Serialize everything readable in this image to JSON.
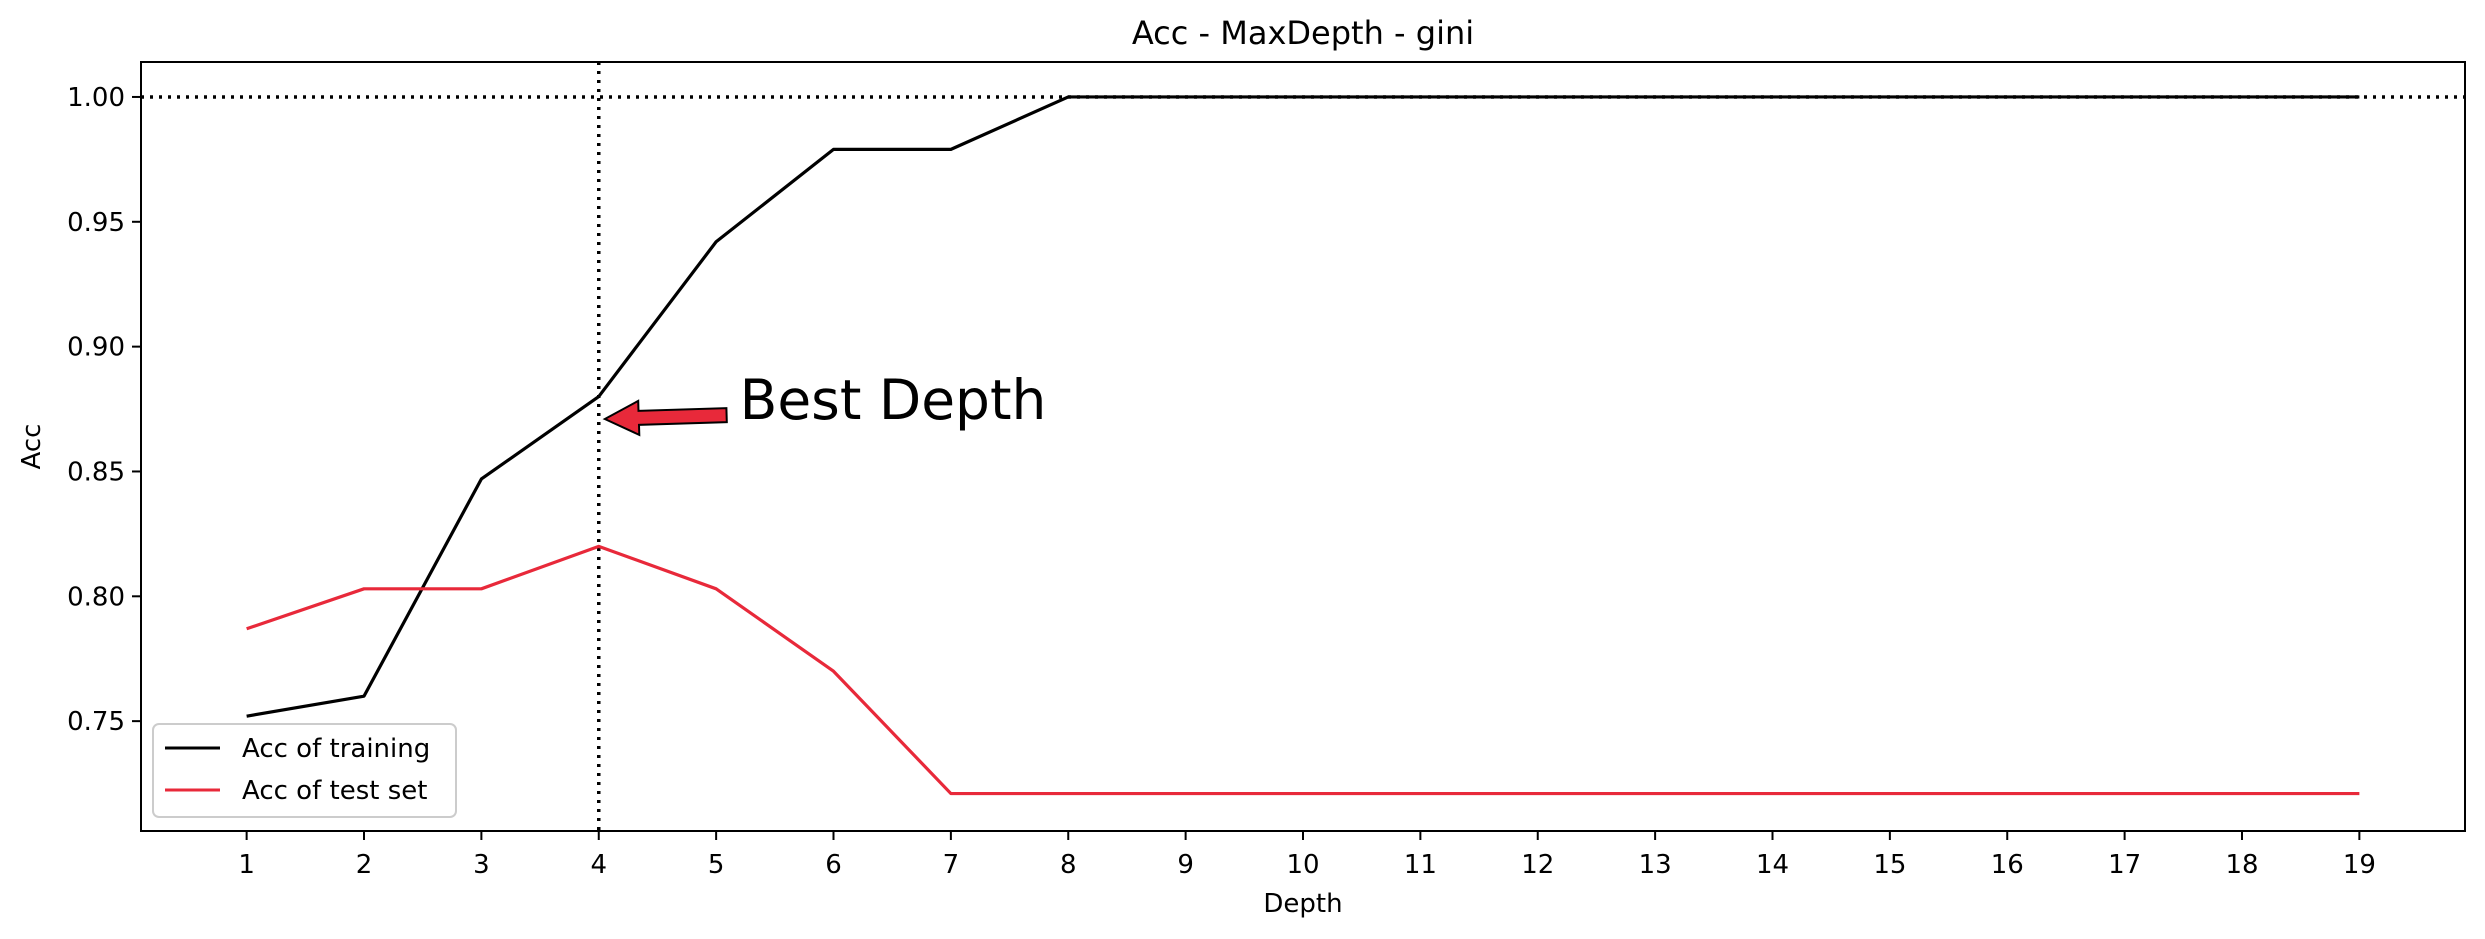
{
  "chart_data": {
    "type": "line",
    "title": "Acc - MaxDepth - gini",
    "xlabel": "Depth",
    "ylabel": "Acc",
    "x": [
      1,
      2,
      3,
      4,
      5,
      6,
      7,
      8,
      9,
      10,
      11,
      12,
      13,
      14,
      15,
      16,
      17,
      18,
      19
    ],
    "xlim": [
      0.1,
      19.9
    ],
    "ylim": [
      0.706,
      1.014
    ],
    "yticks": [
      "0.75",
      "0.80",
      "0.85",
      "0.90",
      "0.95",
      "1.00"
    ],
    "ytick_values": [
      0.75,
      0.8,
      0.85,
      0.9,
      0.95,
      1.0
    ],
    "grid": false,
    "legend_placement": "lower-left",
    "series": [
      {
        "name": "Acc of training",
        "color": "#000000",
        "values": [
          0.752,
          0.76,
          0.847,
          0.88,
          0.942,
          0.979,
          0.979,
          1.0,
          1.0,
          1.0,
          1.0,
          1.0,
          1.0,
          1.0,
          1.0,
          1.0,
          1.0,
          1.0,
          1.0
        ]
      },
      {
        "name": "Acc of test set",
        "color": "#e8293a",
        "values": [
          0.787,
          0.803,
          0.803,
          0.82,
          0.803,
          0.77,
          0.721,
          0.721,
          0.721,
          0.721,
          0.721,
          0.721,
          0.721,
          0.721,
          0.721,
          0.721,
          0.721,
          0.721,
          0.721
        ]
      }
    ],
    "reference_lines": [
      {
        "orientation": "horizontal",
        "value": 1.0,
        "style": "dotted",
        "color": "#000000"
      },
      {
        "orientation": "vertical",
        "value": 4,
        "style": "dotted",
        "color": "#000000"
      }
    ],
    "annotation": {
      "text": "Best Depth",
      "point_x": 4,
      "point_y": 0.871,
      "text_x": 5.2,
      "text_y": 0.879,
      "arrow_color": "#e8293a"
    }
  }
}
